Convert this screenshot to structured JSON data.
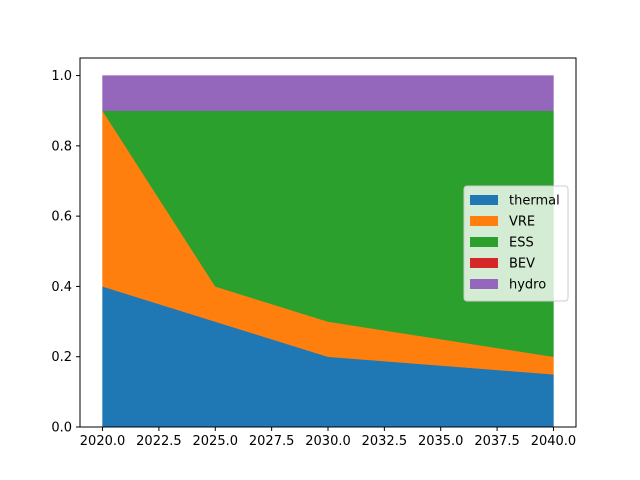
{
  "chart_data": {
    "type": "area",
    "stacked": true,
    "title": "",
    "xlabel": "",
    "ylabel": "",
    "x": [
      2020,
      2025,
      2030,
      2040
    ],
    "xlim": [
      2019,
      2041
    ],
    "ylim": [
      0.0,
      1.05
    ],
    "xticks": [
      2020.0,
      2022.5,
      2025.0,
      2027.5,
      2030.0,
      2032.5,
      2035.0,
      2037.5,
      2040.0
    ],
    "xtick_labels": [
      "2020.0",
      "2022.5",
      "2025.0",
      "2027.5",
      "2030.0",
      "2032.5",
      "2035.0",
      "2037.5",
      "2040.0"
    ],
    "yticks": [
      0.0,
      0.2,
      0.4,
      0.6,
      0.8,
      1.0
    ],
    "ytick_labels": [
      "0.0",
      "0.2",
      "0.4",
      "0.6",
      "0.8",
      "1.0"
    ],
    "grid": false,
    "legend_position": "center-right",
    "series": [
      {
        "name": "thermal",
        "color": "#1f77b4",
        "values": [
          0.4,
          0.3,
          0.2,
          0.15
        ]
      },
      {
        "name": "VRE",
        "color": "#ff7f0e",
        "values": [
          0.5,
          0.1,
          0.1,
          0.05
        ]
      },
      {
        "name": "ESS",
        "color": "#2ca02c",
        "values": [
          0.0,
          0.5,
          0.6,
          0.7
        ]
      },
      {
        "name": "BEV",
        "color": "#d62728",
        "values": [
          0.0,
          0.0,
          0.0,
          0.0
        ]
      },
      {
        "name": "hydro",
        "color": "#9467bd",
        "values": [
          0.1,
          0.1,
          0.1,
          0.1
        ]
      }
    ]
  }
}
